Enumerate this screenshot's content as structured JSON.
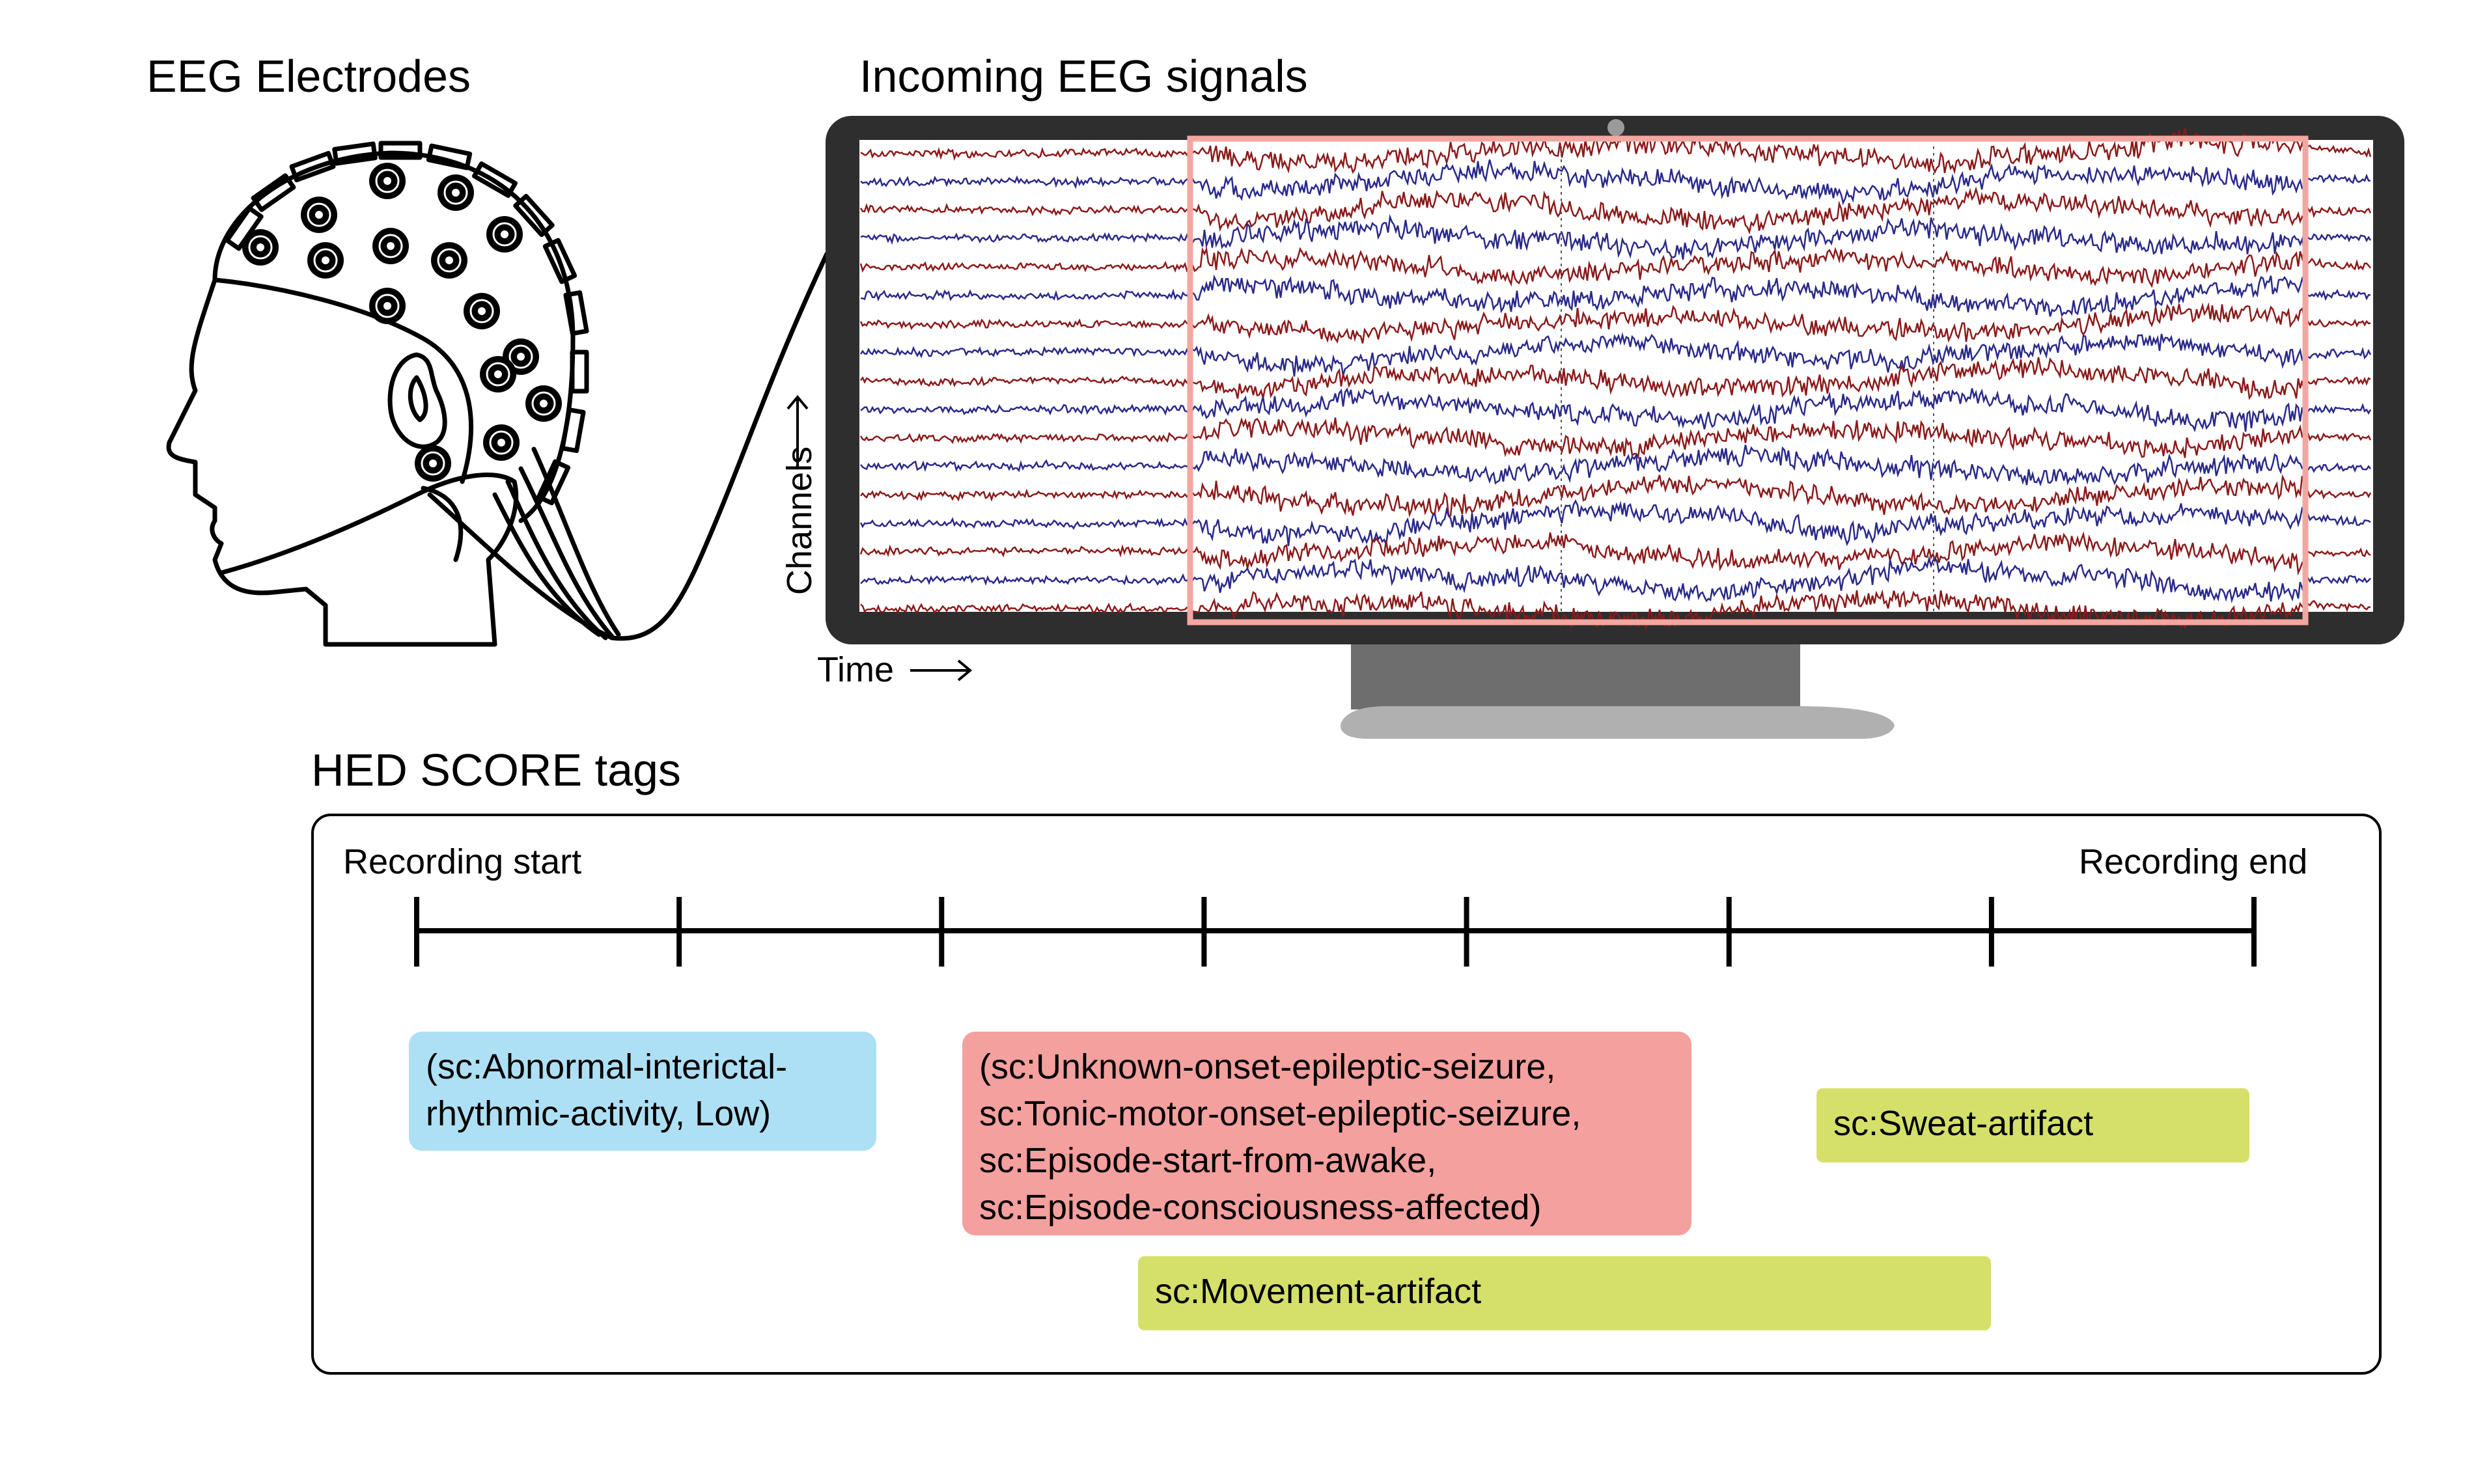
{
  "headings": {
    "electrodes": "EEG Electrodes",
    "signals": "Incoming EEG signals",
    "tags": "HED SCORE tags"
  },
  "monitor_axes": {
    "channels": "Channels",
    "time": "Time"
  },
  "timeline": {
    "start_label": "Recording start",
    "end_label": "Recording end",
    "tick_count": 8
  },
  "tags": [
    {
      "lines": [
        "(sc:Abnormal-interictal-",
        "rhythmic-activity, Low)"
      ],
      "color": "#aee0f5"
    },
    {
      "lines": [
        "(sc:Unknown-onset-epileptic-seizure,",
        "sc:Tonic-motor-onset-epileptic-seizure,",
        "sc:Episode-start-from-awake,",
        "sc:Episode-consciousness-affected)"
      ],
      "color": "#f4a09e"
    },
    {
      "lines": [
        "sc:Sweat-artifact"
      ],
      "color": "#d5e06a"
    },
    {
      "lines": [
        "sc:Movement-artifact"
      ],
      "color": "#d5e06a"
    }
  ],
  "colors": {
    "trace_red": "#8b1a1a",
    "trace_blue": "#2a2a8a",
    "highlight": "#f4a6a0",
    "monitor_frame": "#2e2e2e",
    "stand": "#6e6e6e",
    "base": "#b0b0b0"
  },
  "icons": [
    "eeg-head-icon",
    "electrode-icon",
    "monitor-icon"
  ]
}
